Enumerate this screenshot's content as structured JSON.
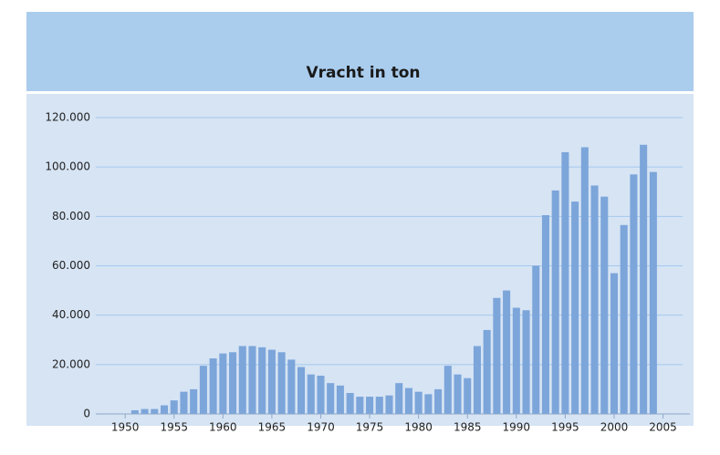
{
  "chart_data": {
    "type": "bar",
    "title": "Vracht in ton",
    "x": [
      1950,
      1951,
      1952,
      1953,
      1954,
      1955,
      1956,
      1957,
      1958,
      1959,
      1960,
      1961,
      1962,
      1963,
      1964,
      1965,
      1966,
      1967,
      1968,
      1969,
      1970,
      1971,
      1972,
      1973,
      1974,
      1975,
      1976,
      1977,
      1978,
      1979,
      1980,
      1981,
      1982,
      1983,
      1984,
      1985,
      1986,
      1987,
      1988,
      1989,
      1990,
      1991,
      1992,
      1993,
      1994,
      1995,
      1996,
      1997,
      1998,
      1999,
      2000,
      2001,
      2002,
      2003,
      2004
    ],
    "values": [
      0,
      1500,
      2000,
      2000,
      3500,
      5500,
      9000,
      10000,
      19500,
      22500,
      24500,
      25000,
      27500,
      27500,
      27000,
      26000,
      25000,
      22000,
      19000,
      16000,
      15500,
      12500,
      11500,
      8500,
      7000,
      7000,
      7000,
      7500,
      12500,
      10500,
      9000,
      8000,
      10000,
      19500,
      16000,
      14500,
      27500,
      34000,
      47000,
      50000,
      43000,
      42000,
      60000,
      80500,
      90500,
      106000,
      86000,
      108000,
      92500,
      88000,
      57000,
      76500,
      97000,
      109000,
      98000
    ],
    "color": "#7ca5da",
    "xlim": [
      1947,
      2007
    ],
    "xticks": [
      1950,
      1955,
      1960,
      1965,
      1970,
      1975,
      1980,
      1985,
      1990,
      1995,
      2000,
      2005
    ],
    "ylim": [
      0,
      120000
    ],
    "yticks": [
      0,
      {
        "value": 20000,
        "label": "20.000"
      },
      {
        "value": 40000,
        "label": "40.000"
      },
      {
        "value": 60000,
        "label": "60.000"
      },
      {
        "value": 80000,
        "label": "80.000"
      },
      {
        "value": 100000,
        "label": "100.000"
      },
      {
        "value": 120000,
        "label": "120.000"
      }
    ],
    "grid": true
  }
}
